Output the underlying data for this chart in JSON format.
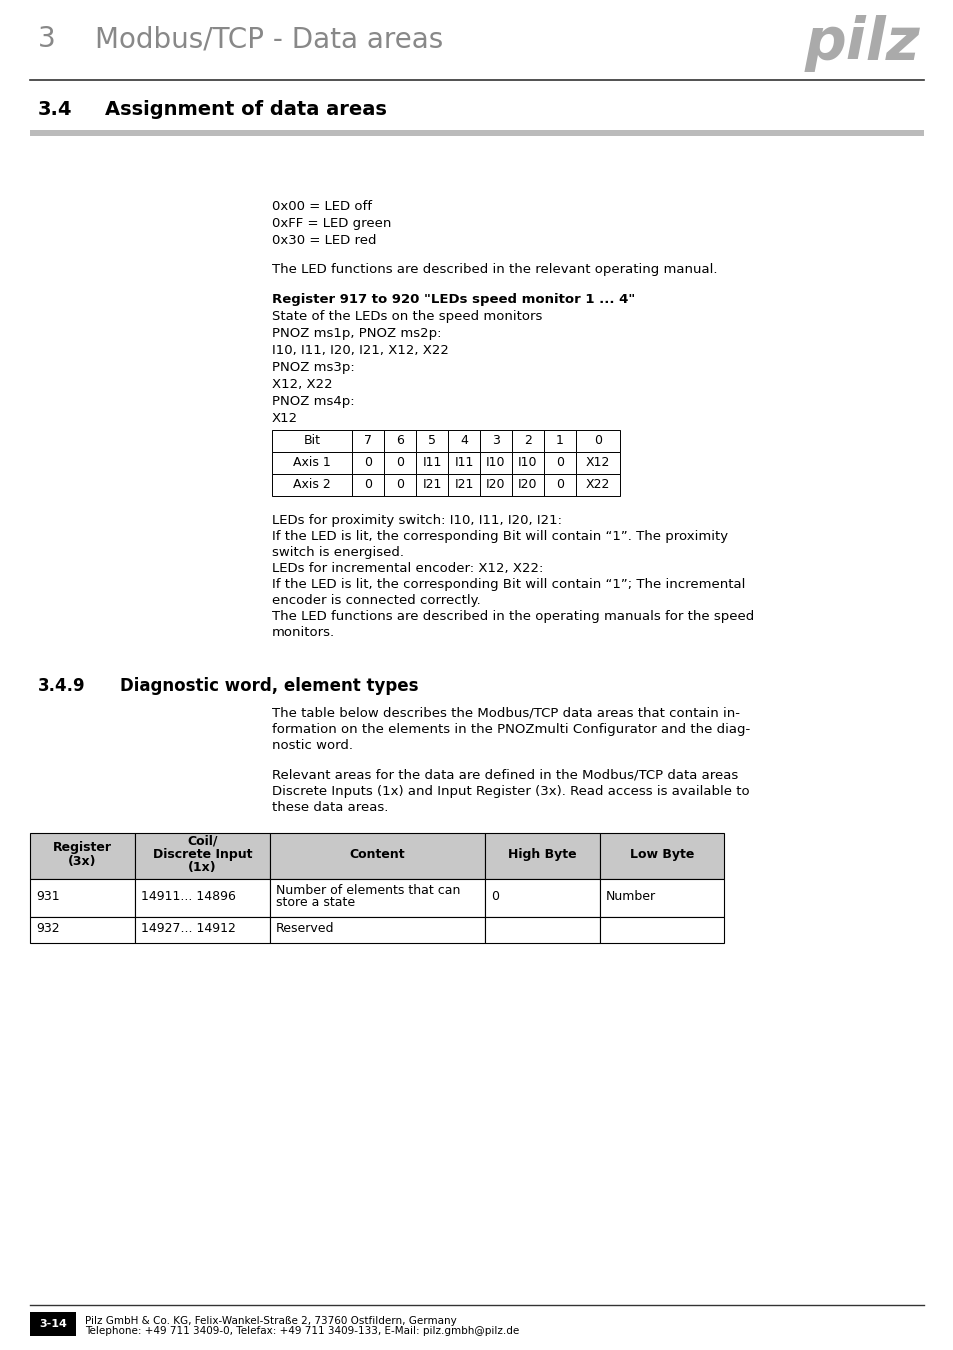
{
  "page_title_num": "3",
  "page_title_text": "Modbus/TCP - Data areas",
  "section_num": "3.4",
  "section_title": "Assignment of data areas",
  "subsection_num": "3.4.9",
  "subsection_title": "Diagnostic word, element types",
  "led_lines": [
    "0x00 = LED off",
    "0xFF = LED green",
    "0x30 = LED red"
  ],
  "led_note": "The LED functions are described in the relevant operating manual.",
  "register_header": "Register 917 to 920 \"LEDs speed monitor 1 ... 4\"",
  "register_sub1": "State of the LEDs on the speed monitors",
  "register_sub2": "PNOZ ms1p, PNOZ ms2p:",
  "register_sub3": "I10, I11, I20, I21, X12, X22",
  "register_sub4": "PNOZ ms3p:",
  "register_sub5": "X12, X22",
  "register_sub6": "PNOZ ms4p:",
  "register_sub7": "X12",
  "bit_table_headers": [
    "Bit",
    "7",
    "6",
    "5",
    "4",
    "3",
    "2",
    "1",
    "0"
  ],
  "bit_table_row1": [
    "Axis 1",
    "0",
    "0",
    "I11",
    "I11",
    "I10",
    "I10",
    "0",
    "X12"
  ],
  "bit_table_row2": [
    "Axis 2",
    "0",
    "0",
    "I21",
    "I21",
    "I20",
    "I20",
    "0",
    "X22"
  ],
  "led_proximity_text": [
    "LEDs for proximity switch: I10, I11, I20, I21:",
    "If the LED is lit, the corresponding Bit will contain “1”. The proximity",
    "switch is energised.",
    "LEDs for incremental encoder: X12, X22:",
    "If the LED is lit, the corresponding Bit will contain “1”; The incremental",
    "encoder is connected correctly.",
    "The LED functions are described in the operating manuals for the speed",
    "monitors."
  ],
  "diag_text1": "The table below describes the Modbus/TCP data areas that contain in-",
  "diag_text2": "formation on the elements in the PNOZmulti Configurator and the diag-",
  "diag_text3": "nostic word.",
  "diag_text4": "Relevant areas for the data are defined in the Modbus/TCP data areas",
  "diag_text5": "Discrete Inputs (1x) and Input Register (3x). Read access is available to",
  "diag_text6": "these data areas.",
  "main_table_headers": [
    "Register\n(3x)",
    "Coil/\nDiscrete Input\n(1x)",
    "Content",
    "High Byte",
    "Low Byte"
  ],
  "main_table_rows": [
    [
      "931",
      "14911... 14896",
      "Number of elements that can\nstore a state",
      "0",
      "Number"
    ],
    [
      "932",
      "14927... 14912",
      "Reserved",
      "",
      ""
    ]
  ],
  "footer_page": "3-14",
  "footer_line1": "Pilz GmbH & Co. KG, Felix-Wankel-Straße 2, 73760 Ostfildern, Germany",
  "footer_line2": "Telephone: +49 711 3409-0, Telefax: +49 711 3409-133, E-Mail: pilz.gmbh@pilz.de",
  "bg_color": "#ffffff",
  "pilz_logo_color": "#aaaaaa",
  "gray_bar_color": "#bbbbbb",
  "table_header_bg": "#c8c8c8"
}
